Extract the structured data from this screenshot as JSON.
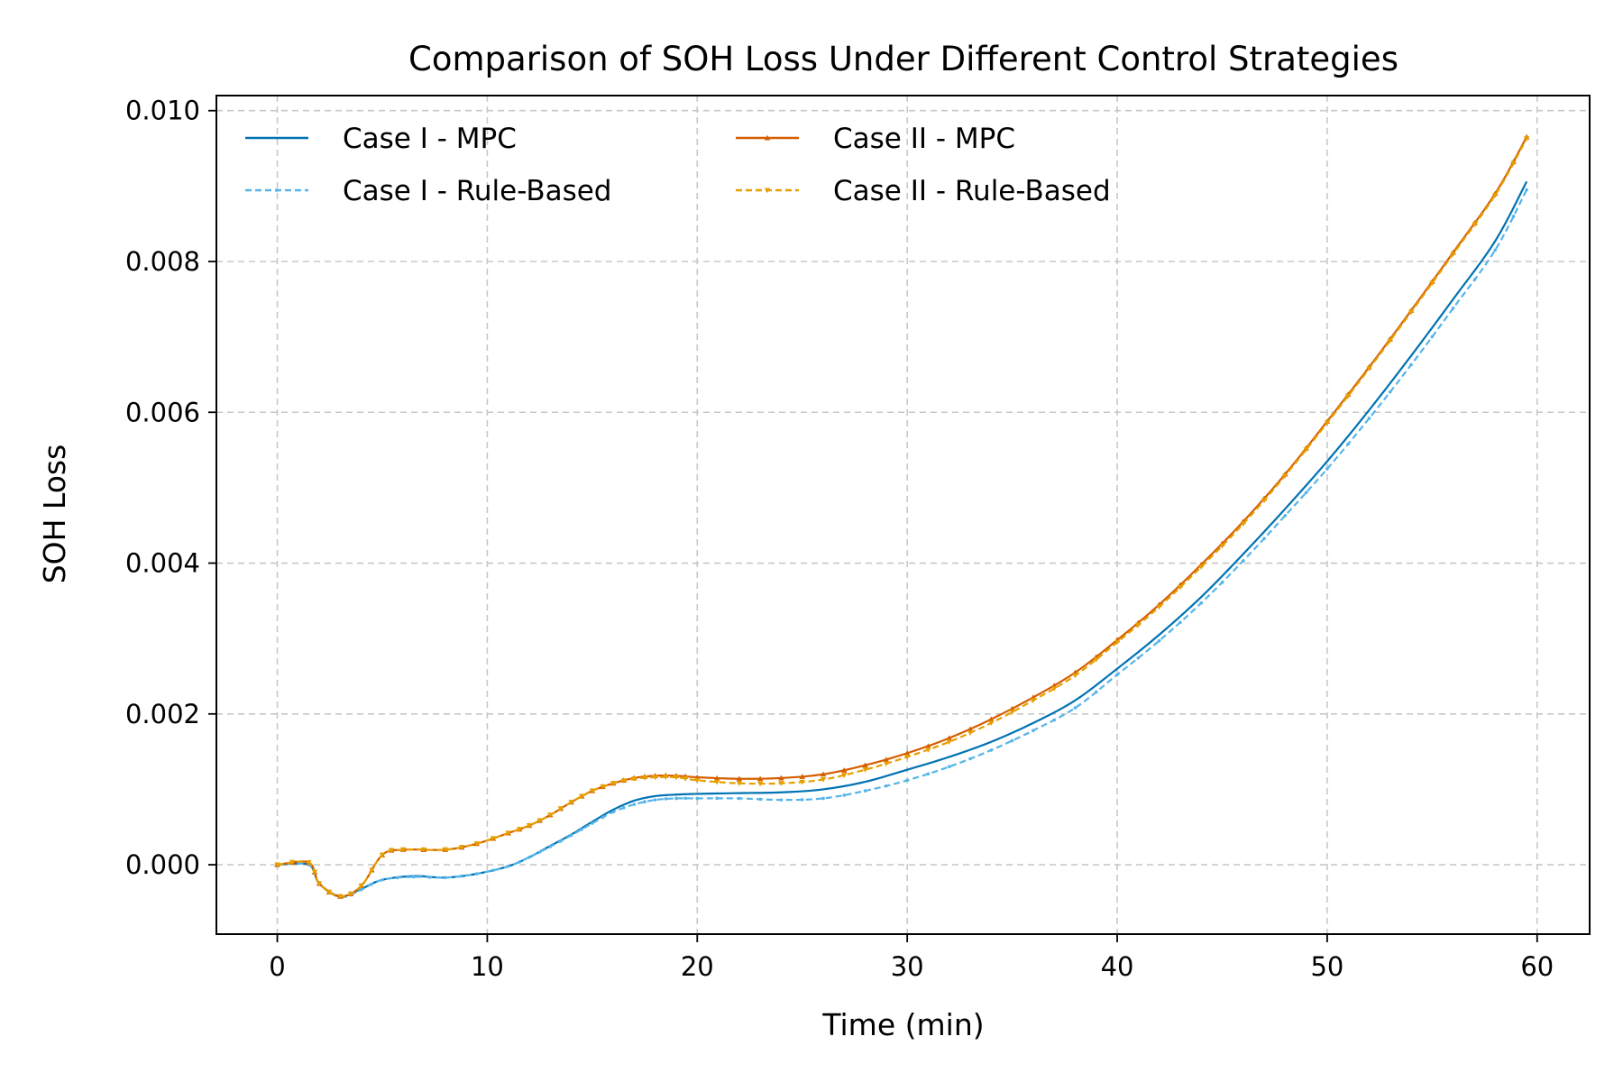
{
  "chart_data": {
    "type": "line",
    "title": "Comparison of SOH Loss Under Different Control Strategies",
    "xlabel": "Time (min)",
    "ylabel": "SOH Loss",
    "xlim": [
      -2.9,
      62.5
    ],
    "ylim": [
      -0.00092,
      0.0102
    ],
    "xticks": [
      0,
      10,
      20,
      30,
      40,
      50,
      60
    ],
    "xtick_labels": [
      "0",
      "10",
      "20",
      "30",
      "40",
      "50",
      "60"
    ],
    "yticks": [
      0.0,
      0.002,
      0.004,
      0.006,
      0.008,
      0.01
    ],
    "ytick_labels": [
      "0.000",
      "0.002",
      "0.004",
      "0.006",
      "0.008",
      "0.010"
    ],
    "grid": true,
    "legend_position": "top-left, two columns",
    "series": [
      {
        "name": "Case I - MPC",
        "color": "#0072b2",
        "style": "solid",
        "marker": "none",
        "points": [
          [
            0,
            0.0
          ],
          [
            1.5,
            0.0
          ],
          [
            2,
            -0.00025
          ],
          [
            3,
            -0.00042
          ],
          [
            4,
            -0.00032
          ],
          [
            5,
            -0.0002
          ],
          [
            6.5,
            -0.00015
          ],
          [
            8,
            -0.00017
          ],
          [
            9.5,
            -0.00012
          ],
          [
            11,
            -2e-05
          ],
          [
            12,
            0.0001
          ],
          [
            13,
            0.00025
          ],
          [
            14,
            0.0004
          ],
          [
            15,
            0.00057
          ],
          [
            16,
            0.00073
          ],
          [
            17,
            0.00085
          ],
          [
            18,
            0.00091
          ],
          [
            19,
            0.00093
          ],
          [
            20,
            0.00094
          ],
          [
            22,
            0.00095
          ],
          [
            24,
            0.00096
          ],
          [
            26,
            0.001
          ],
          [
            28,
            0.0011
          ],
          [
            30,
            0.00126
          ],
          [
            32,
            0.00143
          ],
          [
            34,
            0.00163
          ],
          [
            36,
            0.00188
          ],
          [
            38,
            0.00218
          ],
          [
            40,
            0.0026
          ],
          [
            42,
            0.00305
          ],
          [
            44,
            0.00355
          ],
          [
            46,
            0.00412
          ],
          [
            48,
            0.00472
          ],
          [
            50,
            0.00535
          ],
          [
            52,
            0.00603
          ],
          [
            54,
            0.00675
          ],
          [
            56,
            0.0075
          ],
          [
            58,
            0.00827
          ],
          [
            59.5,
            0.00906
          ]
        ]
      },
      {
        "name": "Case I - Rule-Based",
        "color": "#56b4e9",
        "style": "dashed",
        "marker": "dot",
        "points": [
          [
            0,
            0.0
          ],
          [
            1.5,
            0.0
          ],
          [
            2,
            -0.00025
          ],
          [
            3,
            -0.00043
          ],
          [
            4,
            -0.00033
          ],
          [
            5,
            -0.0002
          ],
          [
            6.5,
            -0.00016
          ],
          [
            8,
            -0.00017
          ],
          [
            9.5,
            -0.00012
          ],
          [
            11,
            -2e-05
          ],
          [
            12,
            0.0001
          ],
          [
            13,
            0.00024
          ],
          [
            14,
            0.00039
          ],
          [
            15,
            0.00055
          ],
          [
            16,
            0.0007
          ],
          [
            17,
            0.0008
          ],
          [
            18,
            0.00086
          ],
          [
            19,
            0.00088
          ],
          [
            20,
            0.00088
          ],
          [
            22,
            0.00088
          ],
          [
            24,
            0.00086
          ],
          [
            26,
            0.00088
          ],
          [
            28,
            0.00098
          ],
          [
            30,
            0.00112
          ],
          [
            32,
            0.0013
          ],
          [
            34,
            0.00152
          ],
          [
            36,
            0.00178
          ],
          [
            38,
            0.00208
          ],
          [
            40,
            0.00252
          ],
          [
            42,
            0.00297
          ],
          [
            44,
            0.00347
          ],
          [
            46,
            0.00403
          ],
          [
            48,
            0.00463
          ],
          [
            50,
            0.00525
          ],
          [
            52,
            0.00592
          ],
          [
            54,
            0.00663
          ],
          [
            56,
            0.00738
          ],
          [
            58,
            0.00815
          ],
          [
            59.5,
            0.00895
          ]
        ]
      },
      {
        "name": "Case II - MPC",
        "color": "#d55e00",
        "style": "solid",
        "marker": "triangle-up",
        "points": [
          [
            0,
            0.0
          ],
          [
            1.5,
            3e-05
          ],
          [
            2,
            -0.00025
          ],
          [
            3,
            -0.00042
          ],
          [
            4,
            -0.00028
          ],
          [
            5,
            0.00013
          ],
          [
            6,
            0.0002
          ],
          [
            8,
            0.0002
          ],
          [
            9.5,
            0.00028
          ],
          [
            11,
            0.00042
          ],
          [
            12,
            0.00052
          ],
          [
            13,
            0.00066
          ],
          [
            14,
            0.00083
          ],
          [
            15,
            0.00098
          ],
          [
            16,
            0.00108
          ],
          [
            17,
            0.00115
          ],
          [
            18,
            0.00118
          ],
          [
            19,
            0.00118
          ],
          [
            20,
            0.00116
          ],
          [
            22,
            0.00114
          ],
          [
            24,
            0.00115
          ],
          [
            26,
            0.0012
          ],
          [
            28,
            0.00132
          ],
          [
            30,
            0.00148
          ],
          [
            32,
            0.00168
          ],
          [
            34,
            0.00193
          ],
          [
            36,
            0.00222
          ],
          [
            38,
            0.00255
          ],
          [
            40,
            0.00298
          ],
          [
            42,
            0.00345
          ],
          [
            44,
            0.00398
          ],
          [
            46,
            0.00455
          ],
          [
            48,
            0.00518
          ],
          [
            50,
            0.00588
          ],
          [
            52,
            0.0066
          ],
          [
            54,
            0.00735
          ],
          [
            56,
            0.00812
          ],
          [
            58,
            0.0089
          ],
          [
            59.5,
            0.00965
          ]
        ]
      },
      {
        "name": "Case II - Rule-Based",
        "color": "#e69f00",
        "style": "dashed",
        "marker": "triangle-down",
        "points": [
          [
            0,
            0.0
          ],
          [
            1.5,
            3e-05
          ],
          [
            2,
            -0.00025
          ],
          [
            3,
            -0.00042
          ],
          [
            4,
            -0.00028
          ],
          [
            5,
            0.00013
          ],
          [
            6,
            0.0002
          ],
          [
            8,
            0.0002
          ],
          [
            9.5,
            0.00028
          ],
          [
            11,
            0.00042
          ],
          [
            12,
            0.00052
          ],
          [
            13,
            0.00066
          ],
          [
            14,
            0.00083
          ],
          [
            15,
            0.00098
          ],
          [
            16,
            0.00108
          ],
          [
            17,
            0.00114
          ],
          [
            18,
            0.00116
          ],
          [
            19,
            0.00116
          ],
          [
            20,
            0.00112
          ],
          [
            22,
            0.00108
          ],
          [
            24,
            0.00108
          ],
          [
            26,
            0.00113
          ],
          [
            28,
            0.00126
          ],
          [
            30,
            0.00143
          ],
          [
            32,
            0.00163
          ],
          [
            34,
            0.00188
          ],
          [
            36,
            0.00218
          ],
          [
            38,
            0.00251
          ],
          [
            40,
            0.00295
          ],
          [
            42,
            0.00342
          ],
          [
            44,
            0.00395
          ],
          [
            46,
            0.00452
          ],
          [
            48,
            0.00516
          ],
          [
            50,
            0.00586
          ],
          [
            52,
            0.00658
          ],
          [
            54,
            0.00733
          ],
          [
            56,
            0.0081
          ],
          [
            58,
            0.00888
          ],
          [
            59.5,
            0.00963
          ]
        ]
      }
    ]
  }
}
